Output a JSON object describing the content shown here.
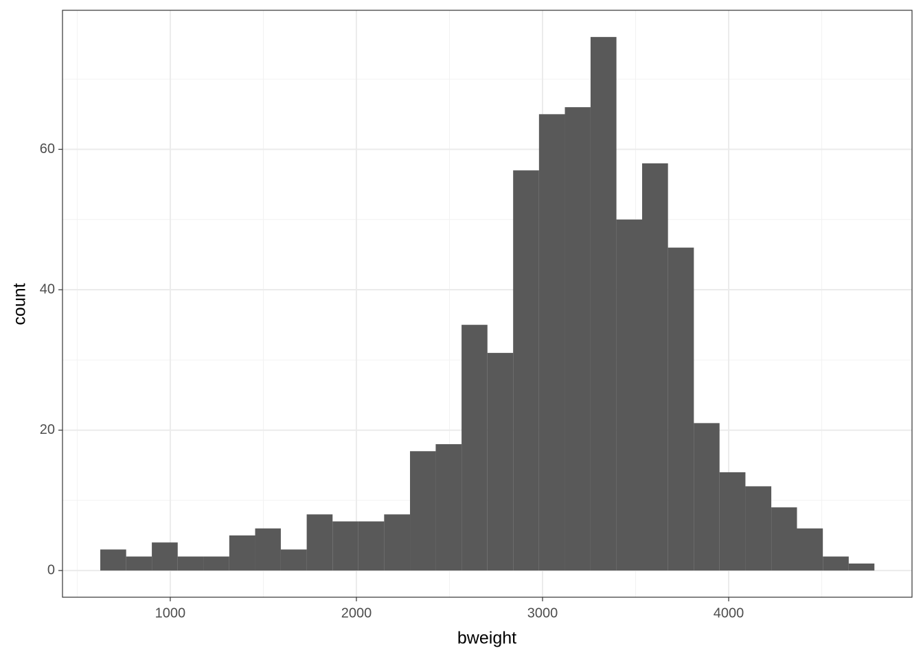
{
  "chart_data": {
    "type": "histogram",
    "x_label": "bweight",
    "y_label": "count",
    "bins": [
      624,
      763,
      901,
      1040,
      1179,
      1317,
      1456,
      1594,
      1733,
      1872,
      2010,
      2149,
      2288,
      2426,
      2565,
      2704,
      2842,
      2981,
      3120,
      3258,
      3397,
      3535,
      3674,
      3813,
      3951,
      4090,
      4229,
      4367,
      4506,
      4645,
      4783
    ],
    "counts": [
      3,
      2,
      4,
      2,
      2,
      5,
      6,
      3,
      8,
      7,
      7,
      8,
      17,
      18,
      35,
      31,
      57,
      65,
      66,
      76,
      50,
      58,
      46,
      21,
      14,
      12,
      9,
      6,
      2,
      1
    ],
    "color": "#595959",
    "xlim": [
      421,
      4985
    ],
    "xticks": [
      1000,
      2000,
      3000,
      4000
    ],
    "ylim": [
      -3.8,
      79.8
    ],
    "yticks": [
      0,
      20,
      40,
      60
    ],
    "grid": true
  }
}
